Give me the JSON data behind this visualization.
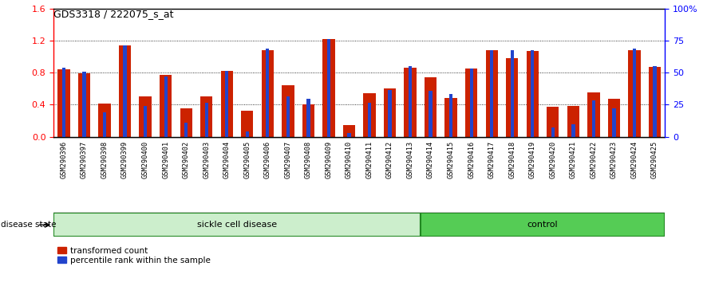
{
  "title": "GDS3318 / 222075_s_at",
  "samples": [
    "GSM290396",
    "GSM290397",
    "GSM290398",
    "GSM290399",
    "GSM290400",
    "GSM290401",
    "GSM290402",
    "GSM290403",
    "GSM290404",
    "GSM290405",
    "GSM290406",
    "GSM290407",
    "GSM290408",
    "GSM290409",
    "GSM290410",
    "GSM290411",
    "GSM290412",
    "GSM290413",
    "GSM290414",
    "GSM290415",
    "GSM290416",
    "GSM290417",
    "GSM290418",
    "GSM290419",
    "GSM290420",
    "GSM290421",
    "GSM290422",
    "GSM290423",
    "GSM290424",
    "GSM290425"
  ],
  "red_values": [
    0.84,
    0.79,
    0.41,
    1.14,
    0.5,
    0.77,
    0.35,
    0.5,
    0.82,
    0.32,
    1.08,
    0.64,
    0.4,
    1.22,
    0.15,
    0.54,
    0.6,
    0.86,
    0.74,
    0.48,
    0.85,
    1.08,
    0.98,
    1.07,
    0.37,
    0.38,
    0.55,
    0.47,
    1.08,
    0.87
  ],
  "blue_values_scaled": [
    0.86,
    0.81,
    0.3,
    1.14,
    0.38,
    0.75,
    0.18,
    0.42,
    0.82,
    0.07,
    1.1,
    0.5,
    0.47,
    1.22,
    0.05,
    0.42,
    0.58,
    0.88,
    0.57,
    0.53,
    0.85,
    1.08,
    1.08,
    1.08,
    0.12,
    0.16,
    0.45,
    0.35,
    1.1,
    0.88
  ],
  "sickle_count": 18,
  "bar_color_red": "#cc2200",
  "bar_color_blue": "#2244cc",
  "left_ylim": [
    0,
    1.6
  ],
  "left_yticks": [
    0.0,
    0.4,
    0.8,
    1.2,
    1.6
  ],
  "right_yticks": [
    0,
    25,
    50,
    75,
    100
  ],
  "right_yticklabels": [
    "0",
    "25",
    "50",
    "75",
    "100%"
  ],
  "bg_color_plot": "#ffffff",
  "bg_color_fig": "#ffffff",
  "xlabel_bg": "#d8d8d8",
  "sickle_label": "sickle cell disease",
  "control_label": "control",
  "disease_state_label": "disease state",
  "legend_red": "transformed count",
  "legend_blue": "percentile rank within the sample",
  "sickle_color": "#cceecc",
  "control_color": "#55cc55",
  "band_border_color": "#228822"
}
